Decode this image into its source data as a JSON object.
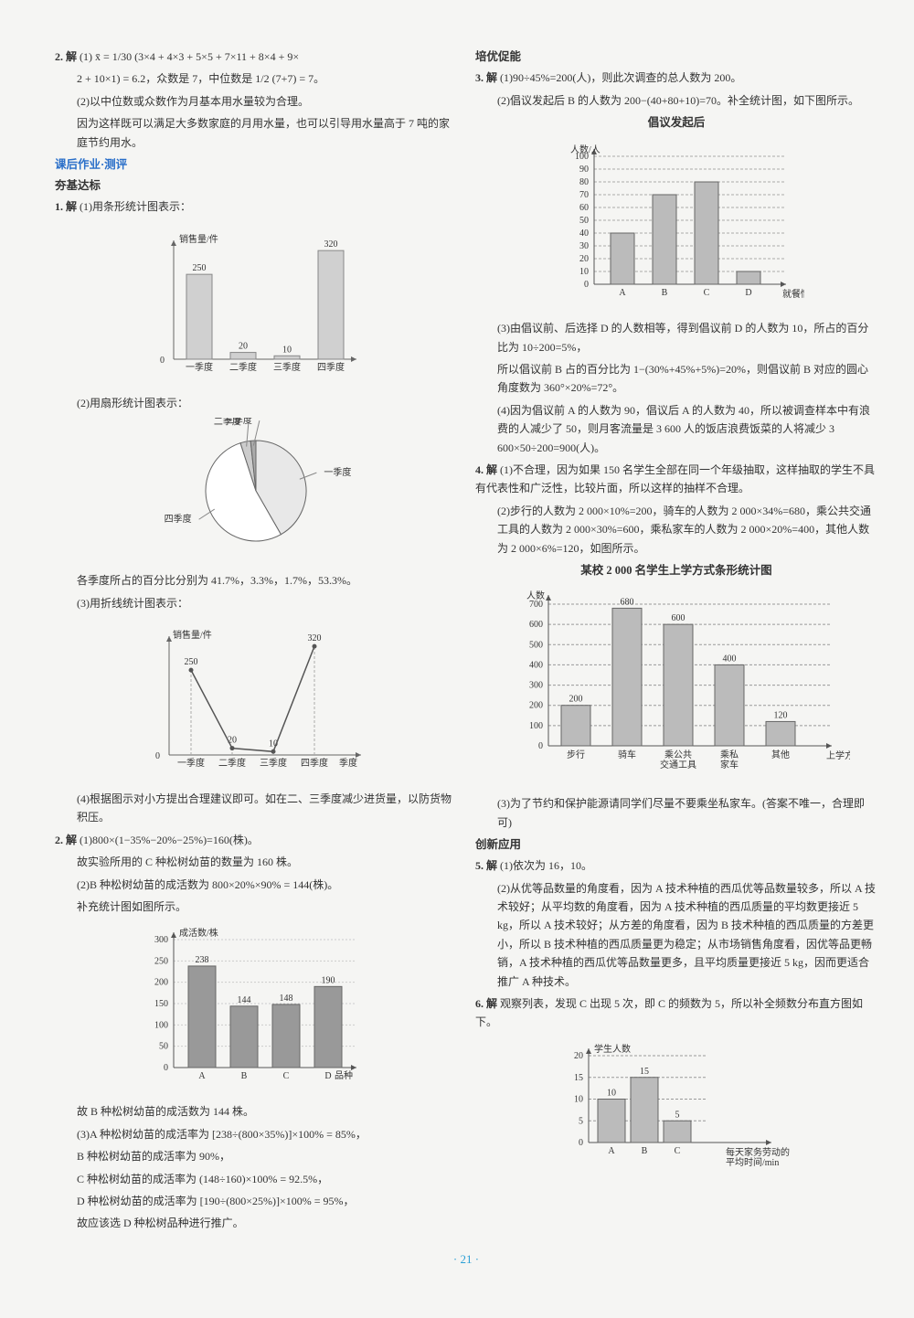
{
  "page_number": "· 21 ·",
  "left": {
    "q2_pre": {
      "label": "2. 解",
      "line1": "(1) x̄ = 1/30 (3×4 + 4×3 + 5×5 + 7×11 + 8×4 + 9×",
      "line2": "2 + 10×1) = 6.2，众数是 7，中位数是 1/2 (7+7) = 7。",
      "line3": "(2)以中位数或众数作为月基本用水量较为合理。",
      "line4": "因为这样既可以满足大多数家庭的月用水量，也可以引导用水量高于 7 吨的家庭节约用水。"
    },
    "section1": "课后作业·测评",
    "section2": "夯基达标",
    "q1": {
      "label": "1. 解",
      "p1": "(1)用条形统计图表示：",
      "bar1": {
        "ylabel": "销售量/件",
        "xlabel_items": [
          "一季度",
          "二季度",
          "三季度",
          "四季度"
        ],
        "values": [
          250,
          20,
          10,
          320
        ],
        "value_labels": [
          "250",
          "20",
          "10",
          "320"
        ],
        "bar_color": "#d0d0d0",
        "axis_color": "#666"
      },
      "p2": "(2)用扇形统计图表示：",
      "pie": {
        "slices": [
          {
            "label": "一季度",
            "pct": 41.7,
            "color": "#e8e8e8"
          },
          {
            "label": "四季度",
            "pct": 53.3,
            "color": "#ffffff"
          },
          {
            "label": "二季度",
            "pct": 3.3,
            "color": "#ccc"
          },
          {
            "label": "三季度",
            "pct": 1.7,
            "color": "#aaa"
          }
        ]
      },
      "p3": "各季度所占的百分比分别为 41.7%，3.3%，1.7%，53.3%。",
      "p4": "(3)用折线统计图表示：",
      "line1": {
        "ylabel": "销售量/件",
        "xlabel": "季度",
        "xitems": [
          "一季度",
          "二季度",
          "三季度",
          "四季度"
        ],
        "values": [
          250,
          20,
          10,
          320
        ],
        "value_labels": [
          "250",
          "20",
          "10",
          "320"
        ],
        "line_color": "#555"
      },
      "p5": "(4)根据图示对小方提出合理建议即可。如在二、三季度减少进货量，以防货物积压。"
    },
    "q2": {
      "label": "2. 解",
      "p1": "(1)800×(1−35%−20%−25%)=160(株)。",
      "p2": "故实验所用的 C 种松树幼苗的数量为 160 株。",
      "p3": "(2)B 种松树幼苗的成活数为 800×20%×90% = 144(株)。",
      "p4": "补充统计图如图所示。",
      "bar2": {
        "ylabel": "成活数/株",
        "xlabel": "品种",
        "xitems": [
          "A",
          "B",
          "C",
          "D"
        ],
        "values": [
          238,
          144,
          148,
          190
        ],
        "value_labels": [
          "238",
          "144",
          "148",
          "190"
        ],
        "yticks": [
          0,
          50,
          100,
          150,
          200,
          250,
          300
        ],
        "bar_color": "#999",
        "grid_color": "#ccc"
      },
      "p5": "故 B 种松树幼苗的成活数为 144 株。",
      "p6": "(3)A 种松树幼苗的成活率为 [238÷(800×35%)]×100% = 85%，",
      "p7": "B 种松树幼苗的成活率为 90%，",
      "p8": "C 种松树幼苗的成活率为 (148÷160)×100% = 92.5%，",
      "p9": "D 种松树幼苗的成活率为 [190÷(800×25%)]×100% = 95%，",
      "p10": "故应该选 D 种松树品种进行推广。"
    }
  },
  "right": {
    "section1": "培优促能",
    "q3": {
      "label": "3. 解",
      "p1": "(1)90÷45%=200(人)，则此次调查的总人数为 200。",
      "p2": "(2)倡议发起后 B 的人数为 200−(40+80+10)=70。补全统计图，如下图所示。",
      "chart_title": "倡议发起后",
      "bar3": {
        "ylabel": "人数/人",
        "xlabel": "就餐情况",
        "xitems": [
          "A",
          "B",
          "C",
          "D"
        ],
        "values": [
          40,
          70,
          80,
          10
        ],
        "yticks": [
          0,
          10,
          20,
          30,
          40,
          50,
          60,
          70,
          80,
          90,
          100
        ],
        "bar_color": "#bbb",
        "grid_color": "#aaa"
      },
      "p3": "(3)由倡议前、后选择 D 的人数相等，得到倡议前 D 的人数为 10，所占的百分比为 10÷200=5%，",
      "p4": "所以倡议前 B 占的百分比为 1−(30%+45%+5%)=20%，则倡议前 B 对应的圆心角度数为 360°×20%=72°。",
      "p5": "(4)因为倡议前 A 的人数为 90，倡议后 A 的人数为 40，所以被调查样本中有浪费的人减少了 50，则月客流量是 3 600 人的饭店浪费饭菜的人将减少 3 600×50÷200=900(人)。"
    },
    "q4": {
      "label": "4. 解",
      "p1": "(1)不合理，因为如果 150 名学生全部在同一个年级抽取，这样抽取的学生不具有代表性和广泛性，比较片面，所以这样的抽样不合理。",
      "p2": "(2)步行的人数为 2 000×10%=200，骑车的人数为 2 000×34%=680，乘公共交通工具的人数为 2 000×30%=600，乘私家车的人数为 2 000×20%=400，其他人数为 2 000×6%=120，如图所示。",
      "chart_title": "某校 2 000 名学生上学方式条形统计图",
      "bar4": {
        "ylabel": "人数",
        "xlabel": "上学方式",
        "xitems": [
          "步行",
          "骑车",
          "乘公共\n交通工具",
          "乘私\n家车",
          "其他"
        ],
        "values": [
          200,
          680,
          600,
          400,
          120
        ],
        "value_labels": [
          "200",
          "680",
          "600",
          "400",
          "120"
        ],
        "yticks": [
          0,
          100,
          200,
          300,
          400,
          500,
          600,
          700
        ],
        "bar_color": "#bbb",
        "grid_color": "#999"
      },
      "p3": "(3)为了节约和保护能源请同学们尽量不要乘坐私家车。(答案不唯一，合理即可)"
    },
    "section2": "创新应用",
    "q5": {
      "label": "5. 解",
      "p1": "(1)依次为 16，10。",
      "p2": "(2)从优等品数量的角度看，因为 A 技术种植的西瓜优等品数量较多，所以 A 技术较好；从平均数的角度看，因为 A 技术种植的西瓜质量的平均数更接近 5 kg，所以 A 技术较好；从方差的角度看，因为 B 技术种植的西瓜质量的方差更小，所以 B 技术种植的西瓜质量更为稳定；从市场销售角度看，因优等品更畅销，A 技术种植的西瓜优等品数量更多，且平均质量更接近 5 kg，因而更适合推广 A 种技术。"
    },
    "q6": {
      "label": "6. 解",
      "p1": "观察列表，发现 C 出现 5 次，即 C 的频数为 5，所以补全频数分布直方图如下。",
      "bar5": {
        "ylabel": "学生人数",
        "xlabel": "每天家务劳动的\n平均时间/min",
        "xitems": [
          "A",
          "B",
          "C"
        ],
        "values": [
          10,
          15,
          5
        ],
        "value_labels": [
          "10",
          "15",
          "5"
        ],
        "yticks": [
          0,
          5,
          10,
          15,
          20
        ],
        "bar_color": "#bbb",
        "grid_color": "#999"
      }
    }
  }
}
